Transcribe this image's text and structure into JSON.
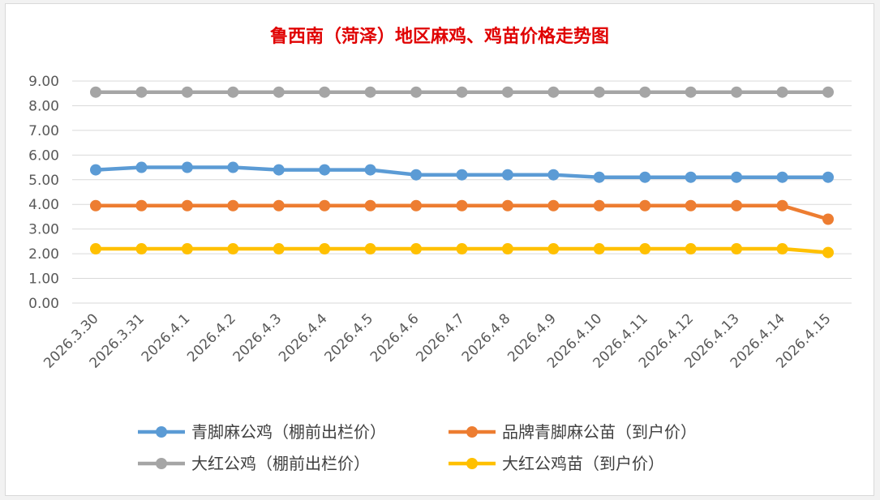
{
  "chart_data": {
    "type": "line",
    "title": "鲁西南（菏泽）地区麻鸡、鸡苗价格走势图",
    "xlabel": "",
    "ylabel": "",
    "ylim": [
      0,
      9
    ],
    "yticks": [
      "0.00",
      "1.00",
      "2.00",
      "3.00",
      "4.00",
      "5.00",
      "6.00",
      "7.00",
      "8.00",
      "9.00"
    ],
    "grid": true,
    "legend_position": "bottom",
    "categories": [
      "2026.3.30",
      "2026.3.31",
      "2026.4.1",
      "2026.4.2",
      "2026.4.3",
      "2026.4.4",
      "2026.4.5",
      "2026.4.6",
      "2026.4.7",
      "2026.4.8",
      "2026.4.9",
      "2026.4.10",
      "2026.4.11",
      "2026.4.12",
      "2026.4.13",
      "2026.4.14",
      "2026.4.15"
    ],
    "series": [
      {
        "name": "青脚麻公鸡（棚前出栏价）",
        "color": "#5b9bd5",
        "values": [
          5.4,
          5.5,
          5.5,
          5.5,
          5.4,
          5.4,
          5.4,
          5.2,
          5.2,
          5.2,
          5.2,
          5.1,
          5.1,
          5.1,
          5.1,
          5.1,
          5.1
        ]
      },
      {
        "name": "品牌青脚麻公苗（到户价）",
        "color": "#ed7d31",
        "values": [
          3.95,
          3.95,
          3.95,
          3.95,
          3.95,
          3.95,
          3.95,
          3.95,
          3.95,
          3.95,
          3.95,
          3.95,
          3.95,
          3.95,
          3.95,
          3.95,
          3.4
        ]
      },
      {
        "name": "大红公鸡（棚前出栏价）",
        "color": "#a5a5a5",
        "values": [
          8.55,
          8.55,
          8.55,
          8.55,
          8.55,
          8.55,
          8.55,
          8.55,
          8.55,
          8.55,
          8.55,
          8.55,
          8.55,
          8.55,
          8.55,
          8.55,
          8.55
        ]
      },
      {
        "name": "大红公鸡苗（到户价）",
        "color": "#ffc000",
        "values": [
          2.2,
          2.2,
          2.2,
          2.2,
          2.2,
          2.2,
          2.2,
          2.2,
          2.2,
          2.2,
          2.2,
          2.2,
          2.2,
          2.2,
          2.2,
          2.2,
          2.05
        ]
      }
    ]
  }
}
